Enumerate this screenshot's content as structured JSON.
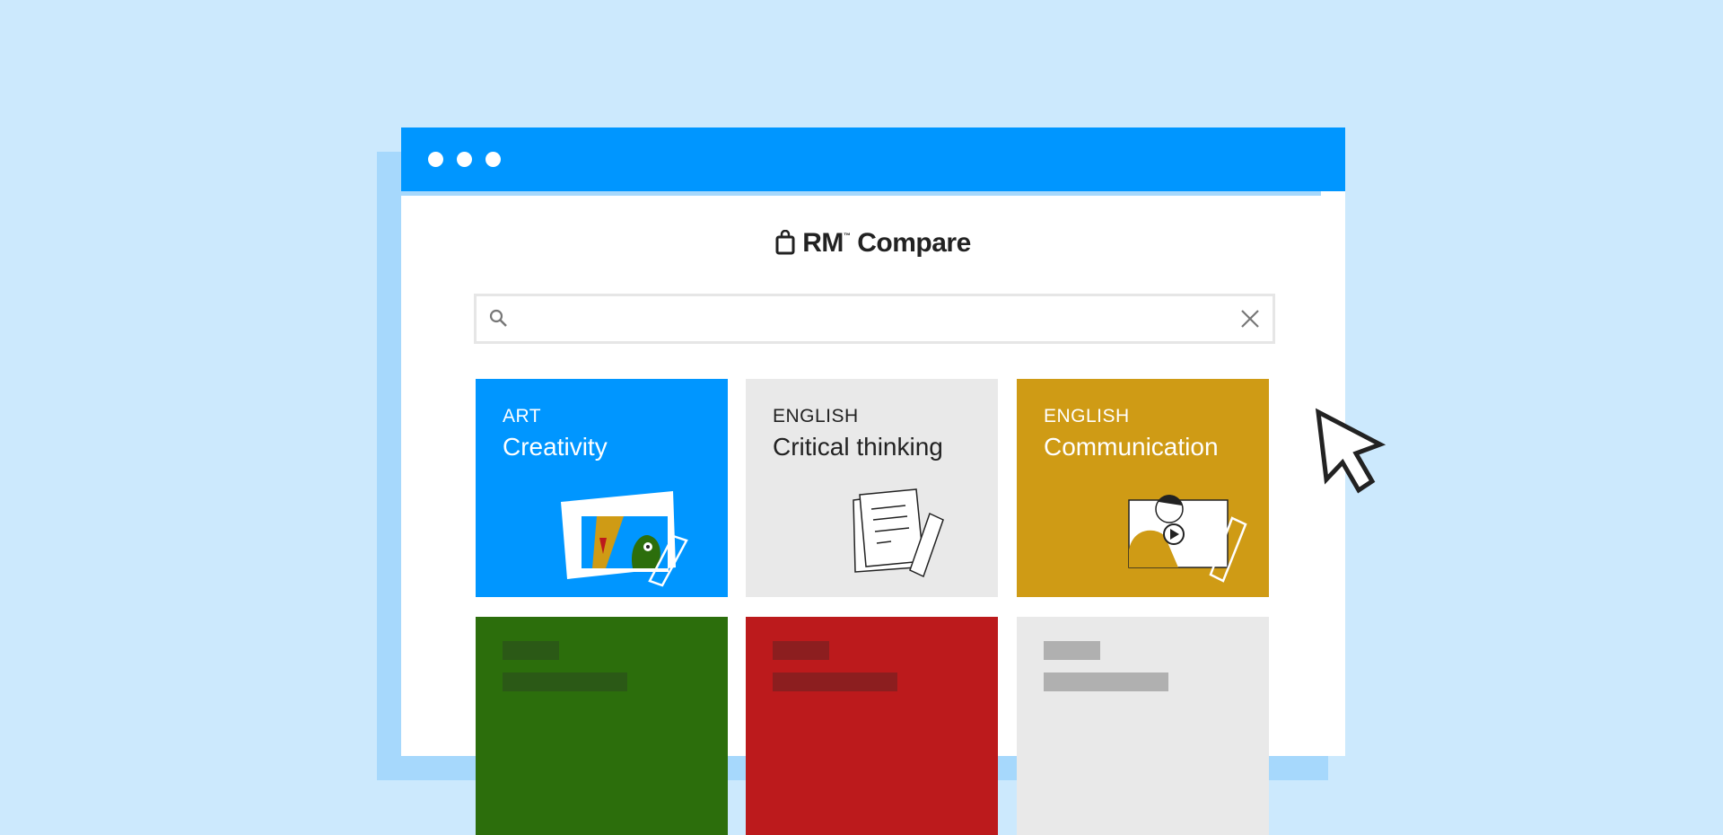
{
  "brand": {
    "name": "RM",
    "trademark": "™",
    "product": "Compare",
    "icon": "shopping-bag-icon"
  },
  "window": {
    "titlebar_color": "#0096ff",
    "dots": 3
  },
  "search": {
    "value": "",
    "placeholder": "",
    "search_icon": "search-icon",
    "clear_icon": "close-icon"
  },
  "cards": [
    {
      "category": "ART",
      "title": "Creativity",
      "color": "#0096ff",
      "text_color": "#ffffff",
      "illustration": "artwork-pages-ruler"
    },
    {
      "category": "ENGLISH",
      "title": "Critical thinking",
      "color": "#e9e9e9",
      "text_color": "#222222",
      "illustration": "document-ruler"
    },
    {
      "category": "ENGLISH",
      "title": "Communication",
      "color": "#cf9b15",
      "text_color": "#ffffff",
      "illustration": "video-person-ruler"
    },
    {
      "category": "",
      "title": "",
      "color": "#2c6e0c",
      "placeholder_color": "#2b5916"
    },
    {
      "category": "",
      "title": "",
      "color": "#bc1a1c",
      "placeholder_color": "#8c1e1f"
    },
    {
      "category": "",
      "title": "",
      "color": "#e9e9e9",
      "placeholder_color": "#b0b0b0"
    }
  ],
  "cursor": {
    "icon": "pointer-cursor-icon"
  }
}
